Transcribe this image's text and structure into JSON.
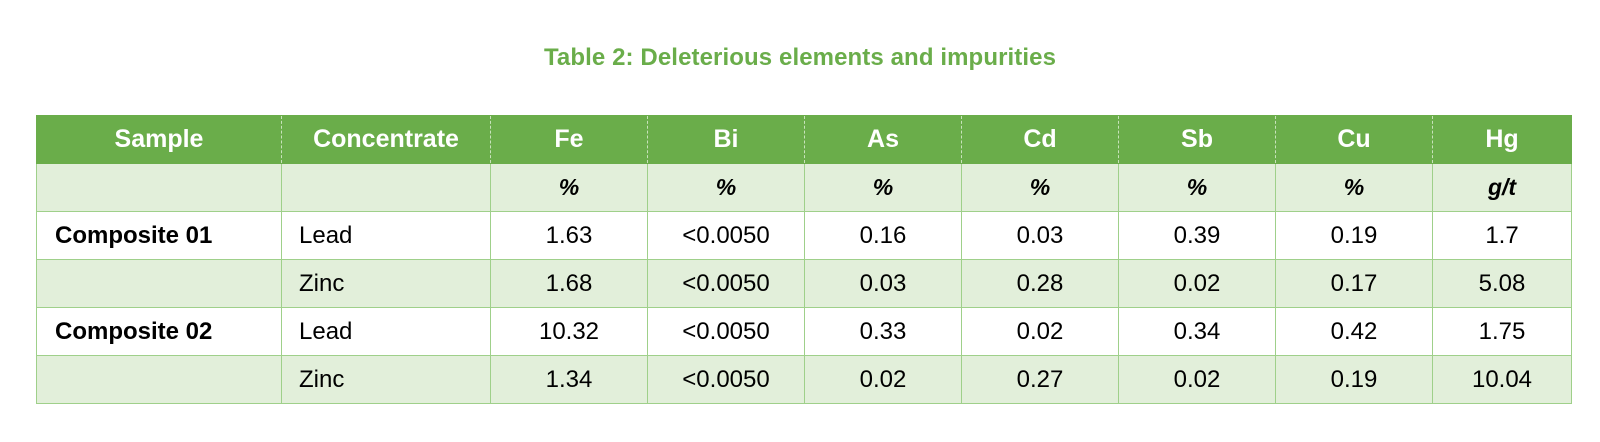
{
  "caption": "Table 2: Deleterious elements and impurities",
  "columns": [
    "Sample",
    "Concentrate",
    "Fe",
    "Bi",
    "As",
    "Cd",
    "Sb",
    "Cu",
    "Hg"
  ],
  "units": [
    "",
    "",
    "%",
    "%",
    "%",
    "%",
    "%",
    "%",
    "g/t"
  ],
  "rows": [
    {
      "sample": "Composite 01",
      "concentrate": "Lead",
      "values": [
        "1.63",
        "<0.0050",
        "0.16",
        "0.03",
        "0.39",
        "0.19",
        "1.7"
      ]
    },
    {
      "sample": "",
      "concentrate": "Zinc",
      "values": [
        "1.68",
        "<0.0050",
        "0.03",
        "0.28",
        "0.02",
        "0.17",
        "5.08"
      ]
    },
    {
      "sample": "Composite 02",
      "concentrate": "Lead",
      "values": [
        "10.32",
        "<0.0050",
        "0.33",
        "0.02",
        "0.34",
        "0.42",
        "1.75"
      ]
    },
    {
      "sample": "",
      "concentrate": "Zinc",
      "values": [
        "1.34",
        "<0.0050",
        "0.02",
        "0.27",
        "0.02",
        "0.19",
        "10.04"
      ]
    }
  ],
  "colors": {
    "header_bg": "#6aad4a",
    "band_bg": "#e2efda",
    "caption": "#6aad4a",
    "grid": "#9fd08a"
  }
}
